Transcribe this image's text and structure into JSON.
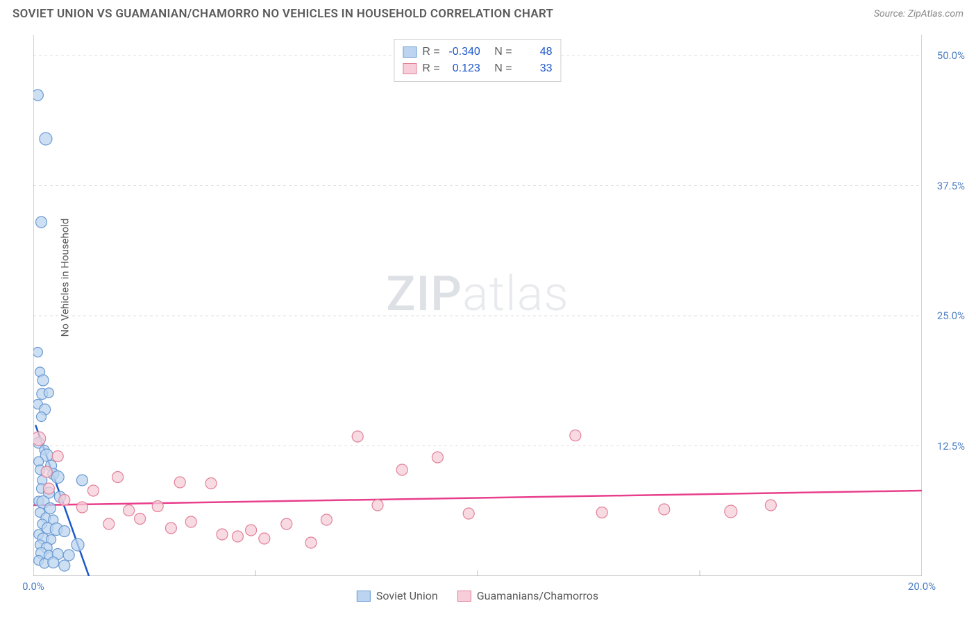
{
  "title": "SOVIET UNION VS GUAMANIAN/CHAMORRO NO VEHICLES IN HOUSEHOLD CORRELATION CHART",
  "source": "Source: ZipAtlas.com",
  "ylabel": "No Vehicles in Household",
  "watermark_a": "ZIP",
  "watermark_b": "atlas",
  "chart": {
    "type": "scatter",
    "xlim": [
      0,
      20
    ],
    "ylim": [
      0,
      52
    ],
    "x_tick_positions": [
      0,
      5,
      10,
      15,
      20
    ],
    "x_tick_labels": [
      "0.0%",
      "",
      "",
      "",
      "20.0%"
    ],
    "y_tick_positions": [
      12.5,
      25.0,
      37.5,
      50.0
    ],
    "y_tick_labels": [
      "12.5%",
      "25.0%",
      "37.5%",
      "50.0%"
    ],
    "grid_color": "#dedede",
    "grid_dash": "4,4",
    "axis_color": "#b8b8b8",
    "tick_label_color_x": "#4d7fc4",
    "tick_label_color_y": "#4d7fc4",
    "series": [
      {
        "name": "Soviet Union",
        "legend_label": "Soviet Union",
        "marker_fill": "#bcd4ef",
        "marker_stroke": "#6a9ad2",
        "marker_opacity": 0.75,
        "default_r": 7,
        "trend_color": "#1d57c8",
        "trend_width": 2.5,
        "trend_p1": [
          0.05,
          14.5
        ],
        "trend_p2": [
          1.25,
          0
        ],
        "stats": {
          "R": "-0.340",
          "N": "48"
        },
        "points": [
          {
            "x": 0.1,
            "y": 46.2,
            "r": 8
          },
          {
            "x": 0.28,
            "y": 42.0,
            "r": 9
          },
          {
            "x": 0.18,
            "y": 34.0,
            "r": 8
          },
          {
            "x": 0.1,
            "y": 21.5,
            "r": 7
          },
          {
            "x": 0.15,
            "y": 19.6,
            "r": 7
          },
          {
            "x": 0.22,
            "y": 18.8,
            "r": 8
          },
          {
            "x": 0.2,
            "y": 17.5,
            "r": 8
          },
          {
            "x": 0.35,
            "y": 17.6,
            "r": 7
          },
          {
            "x": 0.1,
            "y": 16.5,
            "r": 7
          },
          {
            "x": 0.26,
            "y": 16.0,
            "r": 8
          },
          {
            "x": 0.18,
            "y": 15.3,
            "r": 7
          },
          {
            "x": 0.12,
            "y": 12.8,
            "r": 8
          },
          {
            "x": 0.25,
            "y": 12.1,
            "r": 7
          },
          {
            "x": 0.3,
            "y": 11.6,
            "r": 9
          },
          {
            "x": 0.12,
            "y": 11.0,
            "r": 7
          },
          {
            "x": 0.4,
            "y": 10.6,
            "r": 8
          },
          {
            "x": 0.15,
            "y": 10.2,
            "r": 7
          },
          {
            "x": 0.45,
            "y": 9.8,
            "r": 8
          },
          {
            "x": 0.2,
            "y": 9.2,
            "r": 7
          },
          {
            "x": 0.55,
            "y": 9.5,
            "r": 9
          },
          {
            "x": 1.1,
            "y": 9.2,
            "r": 8
          },
          {
            "x": 0.18,
            "y": 8.4,
            "r": 7
          },
          {
            "x": 0.35,
            "y": 8.0,
            "r": 8
          },
          {
            "x": 0.6,
            "y": 7.6,
            "r": 8
          },
          {
            "x": 0.12,
            "y": 7.2,
            "r": 7
          },
          {
            "x": 0.22,
            "y": 7.1,
            "r": 9
          },
          {
            "x": 0.38,
            "y": 6.5,
            "r": 8
          },
          {
            "x": 0.15,
            "y": 6.1,
            "r": 7
          },
          {
            "x": 0.28,
            "y": 5.6,
            "r": 7
          },
          {
            "x": 0.45,
            "y": 5.4,
            "r": 7
          },
          {
            "x": 0.2,
            "y": 5.0,
            "r": 7
          },
          {
            "x": 0.32,
            "y": 4.6,
            "r": 8
          },
          {
            "x": 0.52,
            "y": 4.5,
            "r": 9
          },
          {
            "x": 0.7,
            "y": 4.3,
            "r": 8
          },
          {
            "x": 0.12,
            "y": 4.0,
            "r": 7
          },
          {
            "x": 0.22,
            "y": 3.6,
            "r": 8
          },
          {
            "x": 0.4,
            "y": 3.5,
            "r": 7
          },
          {
            "x": 0.15,
            "y": 3.0,
            "r": 7
          },
          {
            "x": 0.3,
            "y": 2.7,
            "r": 8
          },
          {
            "x": 1.0,
            "y": 3.0,
            "r": 9
          },
          {
            "x": 0.18,
            "y": 2.2,
            "r": 8
          },
          {
            "x": 0.35,
            "y": 2.0,
            "r": 7
          },
          {
            "x": 0.55,
            "y": 2.1,
            "r": 8
          },
          {
            "x": 0.8,
            "y": 2.0,
            "r": 8
          },
          {
            "x": 0.12,
            "y": 1.5,
            "r": 7
          },
          {
            "x": 0.25,
            "y": 1.2,
            "r": 7
          },
          {
            "x": 0.45,
            "y": 1.3,
            "r": 8
          },
          {
            "x": 0.7,
            "y": 1.0,
            "r": 8
          }
        ]
      },
      {
        "name": "Guamanians/Chamorros",
        "legend_label": "Guamanians/Chamorros",
        "marker_fill": "#f6cdd8",
        "marker_stroke": "#e28197",
        "marker_opacity": 0.75,
        "default_r": 8,
        "trend_color": "#e83e8c",
        "trend_width": 2.5,
        "trend_p1": [
          0,
          6.8
        ],
        "trend_p2": [
          20,
          8.2
        ],
        "stats": {
          "R": "0.123",
          "N": "33"
        },
        "points": [
          {
            "x": 0.12,
            "y": 13.2,
            "r": 10
          },
          {
            "x": 0.3,
            "y": 10.0,
            "r": 8
          },
          {
            "x": 0.55,
            "y": 11.5,
            "r": 8
          },
          {
            "x": 0.35,
            "y": 8.4,
            "r": 8
          },
          {
            "x": 0.7,
            "y": 7.3,
            "r": 8
          },
          {
            "x": 1.1,
            "y": 6.6,
            "r": 8
          },
          {
            "x": 1.35,
            "y": 8.2,
            "r": 8
          },
          {
            "x": 1.7,
            "y": 5.0,
            "r": 8
          },
          {
            "x": 1.9,
            "y": 9.5,
            "r": 8
          },
          {
            "x": 2.15,
            "y": 6.3,
            "r": 8
          },
          {
            "x": 2.4,
            "y": 5.5,
            "r": 8
          },
          {
            "x": 2.8,
            "y": 6.7,
            "r": 8
          },
          {
            "x": 3.1,
            "y": 4.6,
            "r": 8
          },
          {
            "x": 3.3,
            "y": 9.0,
            "r": 8
          },
          {
            "x": 3.55,
            "y": 5.2,
            "r": 8
          },
          {
            "x": 4.0,
            "y": 8.9,
            "r": 8
          },
          {
            "x": 4.25,
            "y": 4.0,
            "r": 8
          },
          {
            "x": 4.6,
            "y": 3.8,
            "r": 8
          },
          {
            "x": 4.9,
            "y": 4.4,
            "r": 8
          },
          {
            "x": 5.2,
            "y": 3.6,
            "r": 8
          },
          {
            "x": 5.7,
            "y": 5.0,
            "r": 8
          },
          {
            "x": 6.25,
            "y": 3.2,
            "r": 8
          },
          {
            "x": 6.6,
            "y": 5.4,
            "r": 8
          },
          {
            "x": 7.3,
            "y": 13.4,
            "r": 8
          },
          {
            "x": 7.75,
            "y": 6.8,
            "r": 8
          },
          {
            "x": 8.3,
            "y": 10.2,
            "r": 8
          },
          {
            "x": 9.1,
            "y": 11.4,
            "r": 8
          },
          {
            "x": 9.8,
            "y": 6.0,
            "r": 8
          },
          {
            "x": 12.2,
            "y": 13.5,
            "r": 8
          },
          {
            "x": 14.2,
            "y": 6.4,
            "r": 8
          },
          {
            "x": 15.7,
            "y": 6.2,
            "r": 9
          },
          {
            "x": 16.6,
            "y": 6.8,
            "r": 8
          },
          {
            "x": 12.8,
            "y": 6.1,
            "r": 8
          }
        ]
      }
    ]
  },
  "legend": {
    "series1_label": "Soviet Union",
    "series2_label": "Guamanians/Chamorros"
  },
  "stats_box": {
    "label_R": "R =",
    "label_N": "N ="
  }
}
